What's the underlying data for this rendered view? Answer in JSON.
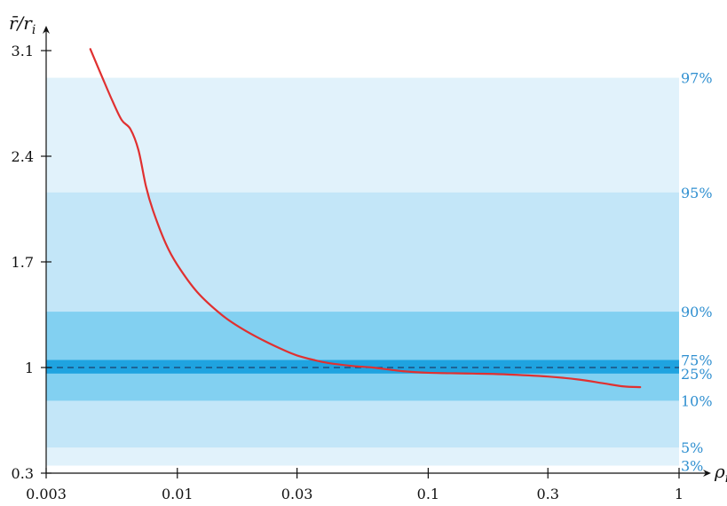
{
  "chart_data": {
    "type": "line",
    "title": "",
    "ylabel": "r̄/r_i",
    "xlabel": "ρ_i",
    "x_scale": "log",
    "xlim": [
      0.003,
      1
    ],
    "ylim": [
      0.3,
      3.1
    ],
    "x_ticks": [
      0.003,
      0.01,
      0.03,
      0.1,
      0.3,
      1
    ],
    "x_tick_labels": [
      "0.003",
      "0.01",
      "0.03",
      "0.1",
      "0.3",
      "1"
    ],
    "y_ticks": [
      0.3,
      1,
      1.7,
      2.4,
      3.1
    ],
    "y_tick_labels": [
      "0.3",
      "1",
      "1.7",
      "2.4",
      "3.1"
    ],
    "reference_line": {
      "y": 1,
      "style": "dashed"
    },
    "percentile_bands": [
      {
        "lower": "3%",
        "upper": "97%",
        "y_low": 0.35,
        "y_high": 2.92,
        "color": "#e1f2fb"
      },
      {
        "lower": "5%",
        "upper": "95%",
        "y_low": 0.47,
        "y_high": 2.16,
        "color": "#c3e6f8"
      },
      {
        "lower": "10%",
        "upper": "90%",
        "y_low": 0.78,
        "y_high": 1.37,
        "color": "#82d0f1"
      },
      {
        "lower": "25%",
        "upper": "75%",
        "y_low": 0.96,
        "y_high": 1.05,
        "color": "#1fa3e0"
      }
    ],
    "band_labels": [
      "97%",
      "95%",
      "90%",
      "75%",
      "25%",
      "10%",
      "5%",
      "3%"
    ],
    "series": [
      {
        "color": "#e03030",
        "x": [
          0.0045,
          0.005,
          0.0055,
          0.006,
          0.0065,
          0.007,
          0.0075,
          0.008,
          0.009,
          0.01,
          0.012,
          0.015,
          0.018,
          0.022,
          0.027,
          0.03,
          0.035,
          0.04,
          0.05,
          0.06,
          0.08,
          0.1,
          0.15,
          0.2,
          0.3,
          0.4,
          0.5,
          0.6,
          0.7
        ],
        "y": [
          3.11,
          2.93,
          2.77,
          2.64,
          2.58,
          2.44,
          2.2,
          2.04,
          1.82,
          1.68,
          1.5,
          1.35,
          1.26,
          1.18,
          1.11,
          1.08,
          1.05,
          1.03,
          1.01,
          1.0,
          0.975,
          0.965,
          0.96,
          0.955,
          0.94,
          0.92,
          0.895,
          0.875,
          0.87
        ]
      }
    ]
  }
}
